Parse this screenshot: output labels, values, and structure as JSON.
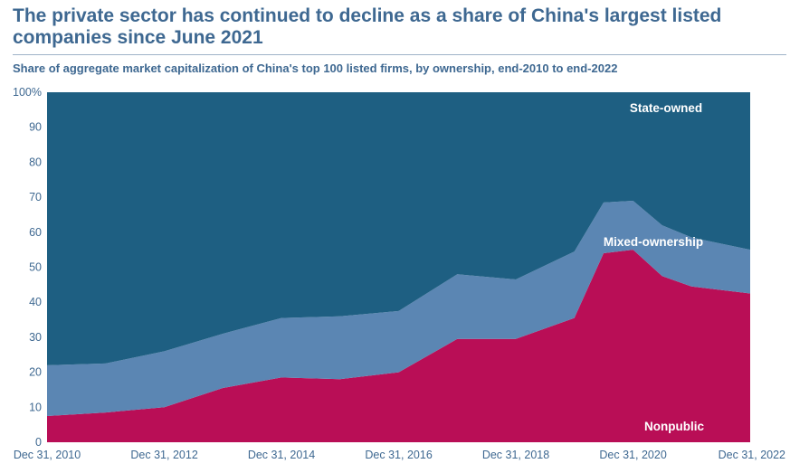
{
  "header": {
    "title": "The private sector has continued to decline as a share of China's largest listed companies since June 2021",
    "subtitle": "Share of aggregate market capitalization of China's top 100 listed firms, by ownership, end-2010 to end-2022"
  },
  "chart_data": {
    "type": "area",
    "stacked": true,
    "x": [
      "2010-12-31",
      "2011-12-31",
      "2012-12-31",
      "2013-12-31",
      "2014-12-31",
      "2015-12-31",
      "2016-12-31",
      "2017-12-31",
      "2018-12-31",
      "2019-12-31",
      "2020-06-30",
      "2020-12-31",
      "2021-06-30",
      "2021-12-31",
      "2022-12-31"
    ],
    "x_tick_labels": [
      "Dec 31, 2010",
      "Dec 31, 2012",
      "Dec 31, 2014",
      "Dec 31, 2016",
      "Dec 31, 2018",
      "Dec 31, 2020",
      "Dec 31, 2022"
    ],
    "y_tick_labels": [
      "0",
      "10",
      "20",
      "30",
      "40",
      "50",
      "60",
      "70",
      "80",
      "90",
      "100%"
    ],
    "ylim": [
      0,
      100
    ],
    "series": [
      {
        "name": "Nonpublic",
        "color": "#b90e56",
        "values": [
          7.5,
          8.5,
          10,
          15.5,
          18.5,
          18,
          20,
          29.5,
          29.5,
          35.5,
          54,
          55,
          47.5,
          44.5,
          42.5
        ]
      },
      {
        "name": "Mixed-ownership",
        "color": "#5b86b3",
        "values": [
          14.5,
          14,
          16,
          15.5,
          17,
          18,
          17.5,
          18.5,
          17,
          19,
          14.5,
          14,
          14.5,
          14,
          12.5
        ]
      },
      {
        "name": "State-owned",
        "color": "#1e5f82",
        "values": [
          78,
          77.5,
          74,
          69,
          64.5,
          64,
          62.5,
          52,
          53.5,
          45.5,
          31.5,
          31,
          38,
          41.5,
          45
        ]
      }
    ],
    "grid": false,
    "legend": "labels inside areas"
  }
}
